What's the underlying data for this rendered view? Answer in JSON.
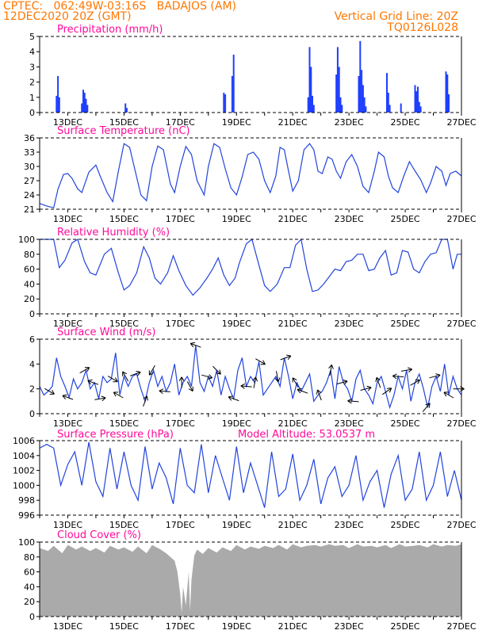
{
  "header": {
    "source_location": "CPTEC:   062:49W-03:16S   BADAJOS (AM)",
    "init_time": "12DEC2020 20Z (GMT)",
    "grid_line": "Vertical Grid Line: 20Z",
    "model_code": "TQ0126L028"
  },
  "x_ticks": [
    "13DEC",
    "15DEC",
    "17DEC",
    "19DEC",
    "21DEC",
    "23DEC",
    "25DEC",
    "27DEC"
  ],
  "colors": {
    "series": "#2244dd",
    "bar": "#1f3fff",
    "cloud": "#aaaaaa",
    "title": "#ff0a9a",
    "header": "#ff7700"
  },
  "chart_data": [
    {
      "type": "bar",
      "title": "Precipitation (mm/h)",
      "ylim": [
        0,
        5
      ],
      "yticks": [
        0,
        1,
        2,
        3,
        4,
        5
      ],
      "xlim": [
        0,
        15
      ],
      "values": [
        [
          0.6,
          1.1
        ],
        [
          0.65,
          2.4
        ],
        [
          0.7,
          1.0
        ],
        [
          1.5,
          0.6
        ],
        [
          1.55,
          1.5
        ],
        [
          1.6,
          1.3
        ],
        [
          1.65,
          0.9
        ],
        [
          1.7,
          0.5
        ],
        [
          3.05,
          0.6
        ],
        [
          3.1,
          0.3
        ],
        [
          6.55,
          1.3
        ],
        [
          6.6,
          1.2
        ],
        [
          6.85,
          2.4
        ],
        [
          6.9,
          3.8
        ],
        [
          9.55,
          1.0
        ],
        [
          9.6,
          4.3
        ],
        [
          9.65,
          3.0
        ],
        [
          9.7,
          1.1
        ],
        [
          9.75,
          0.5
        ],
        [
          10.55,
          2.5
        ],
        [
          10.6,
          4.3
        ],
        [
          10.65,
          3.0
        ],
        [
          10.7,
          1.0
        ],
        [
          10.75,
          0.5
        ],
        [
          11.35,
          2.4
        ],
        [
          11.4,
          4.7
        ],
        [
          11.45,
          2.8
        ],
        [
          11.5,
          1.8
        ],
        [
          11.55,
          1.0
        ],
        [
          11.6,
          0.4
        ],
        [
          12.35,
          2.6
        ],
        [
          12.4,
          1.3
        ],
        [
          12.45,
          0.5
        ],
        [
          12.85,
          0.6
        ],
        [
          13.35,
          1.8
        ],
        [
          13.4,
          1.4
        ],
        [
          13.45,
          1.7
        ],
        [
          13.5,
          0.7
        ],
        [
          13.55,
          0.4
        ],
        [
          14.45,
          2.7
        ],
        [
          14.5,
          2.5
        ],
        [
          14.55,
          1.2
        ]
      ]
    },
    {
      "type": "line",
      "title": "Surface Temperature (nC)",
      "ylim": [
        21,
        36
      ],
      "yticks": [
        21,
        24,
        27,
        30,
        33,
        36
      ],
      "xlim": [
        0,
        15
      ],
      "x": [
        0,
        0.3,
        0.5,
        0.65,
        0.85,
        1.0,
        1.15,
        1.35,
        1.5,
        1.75,
        2.0,
        2.15,
        2.4,
        2.6,
        2.8,
        3.0,
        3.2,
        3.4,
        3.6,
        3.8,
        4.0,
        4.2,
        4.4,
        4.65,
        4.8,
        5.0,
        5.2,
        5.4,
        5.6,
        5.85,
        6.0,
        6.2,
        6.4,
        6.6,
        6.8,
        7.0,
        7.2,
        7.4,
        7.6,
        7.8,
        8.0,
        8.2,
        8.4,
        8.55,
        8.7,
        8.85,
        9.0,
        9.2,
        9.4,
        9.6,
        9.75,
        9.9,
        10.05,
        10.25,
        10.4,
        10.55,
        10.7,
        10.9,
        11.1,
        11.3,
        11.5,
        11.7,
        11.9,
        12.05,
        12.25,
        12.4,
        12.55,
        12.75,
        12.95,
        13.15,
        13.3,
        13.55,
        13.75,
        13.9,
        14.1,
        14.3,
        14.45,
        14.6,
        14.8,
        15.0
      ],
      "y": [
        22.2,
        21.6,
        21.3,
        25.2,
        28.3,
        28.5,
        27.5,
        25.3,
        24.5,
        28.8,
        30.3,
        28.0,
        24.5,
        22.6,
        29.0,
        34.8,
        34.0,
        29.0,
        24.0,
        22.8,
        30.0,
        34.3,
        33.5,
        26.3,
        24.5,
        30.0,
        34.2,
        32.5,
        27.0,
        24.0,
        30.0,
        34.8,
        34.0,
        29.5,
        25.5,
        24.0,
        27.8,
        32.5,
        33.0,
        31.5,
        27.0,
        24.5,
        28.0,
        34.0,
        33.5,
        29.0,
        24.8,
        27.0,
        33.5,
        34.8,
        33.5,
        29.0,
        28.5,
        32.0,
        31.5,
        29.0,
        27.5,
        31.0,
        32.5,
        30.0,
        25.8,
        24.5,
        29.0,
        33.0,
        32.0,
        28.0,
        25.5,
        24.5,
        28.0,
        31.0,
        29.5,
        27.2,
        24.5,
        26.5,
        30.0,
        29.0,
        26.0,
        28.5,
        29.0,
        28.0
      ]
    },
    {
      "type": "line",
      "title": "Relative Humidity (%)",
      "ylim": [
        0,
        100
      ],
      "yticks": [
        0,
        20,
        40,
        60,
        80,
        100
      ],
      "xlim": [
        0,
        15
      ],
      "x": [
        0,
        0.3,
        0.5,
        0.7,
        0.9,
        1.15,
        1.35,
        1.6,
        1.8,
        2.0,
        2.3,
        2.55,
        2.8,
        3.0,
        3.2,
        3.45,
        3.7,
        3.9,
        4.1,
        4.3,
        4.55,
        4.75,
        4.95,
        5.2,
        5.45,
        5.7,
        5.95,
        6.15,
        6.35,
        6.55,
        6.75,
        6.95,
        7.1,
        7.35,
        7.55,
        7.75,
        8.0,
        8.2,
        8.45,
        8.7,
        8.9,
        9.1,
        9.3,
        9.5,
        9.7,
        9.9,
        10.1,
        10.3,
        10.5,
        10.7,
        10.9,
        11.1,
        11.3,
        11.5,
        11.7,
        11.9,
        12.1,
        12.3,
        12.5,
        12.7,
        12.9,
        13.1,
        13.3,
        13.5,
        13.7,
        13.9,
        14.1,
        14.3,
        14.5,
        14.7,
        14.85,
        15.0
      ],
      "y": [
        100,
        100,
        100,
        62,
        72,
        95,
        100,
        70,
        55,
        52,
        80,
        88,
        55,
        32,
        38,
        55,
        90,
        75,
        48,
        40,
        55,
        78,
        58,
        38,
        25,
        35,
        48,
        60,
        75,
        52,
        38,
        48,
        68,
        94,
        100,
        72,
        38,
        30,
        40,
        62,
        62,
        92,
        100,
        60,
        30,
        32,
        40,
        50,
        60,
        58,
        70,
        72,
        80,
        80,
        58,
        60,
        75,
        85,
        52,
        55,
        85,
        83,
        60,
        55,
        70,
        80,
        82,
        100,
        100,
        60,
        80,
        80
      ]
    },
    {
      "type": "line",
      "title": "Surface Wind (m/s)",
      "ylim": [
        0,
        6
      ],
      "yticks": [
        0,
        2,
        4,
        6
      ],
      "xlim": [
        0,
        15
      ],
      "x": [
        0,
        0.15,
        0.3,
        0.45,
        0.6,
        0.75,
        0.9,
        1.05,
        1.2,
        1.35,
        1.5,
        1.65,
        1.8,
        1.95,
        2.1,
        2.25,
        2.4,
        2.55,
        2.7,
        2.85,
        3.0,
        3.15,
        3.3,
        3.45,
        3.6,
        3.75,
        3.9,
        4.05,
        4.2,
        4.35,
        4.5,
        4.65,
        4.8,
        4.95,
        5.1,
        5.25,
        5.4,
        5.55,
        5.7,
        5.85,
        6.0,
        6.15,
        6.3,
        6.45,
        6.6,
        6.75,
        6.9,
        7.05,
        7.2,
        7.35,
        7.5,
        7.65,
        7.8,
        7.95,
        8.1,
        8.25,
        8.4,
        8.55,
        8.7,
        8.85,
        9.0,
        9.15,
        9.3,
        9.45,
        9.6,
        9.75,
        9.9,
        10.05,
        10.2,
        10.35,
        10.5,
        10.65,
        10.8,
        10.95,
        11.1,
        11.25,
        11.4,
        11.55,
        11.7,
        11.85,
        12.0,
        12.15,
        12.3,
        12.45,
        12.6,
        12.75,
        12.9,
        13.05,
        13.2,
        13.35,
        13.5,
        13.65,
        13.8,
        13.95,
        14.1,
        14.25,
        14.4,
        14.55,
        14.7,
        14.85,
        15.0
      ],
      "y": [
        2.2,
        1.5,
        1.8,
        2.2,
        4.5,
        3.0,
        2.2,
        1.3,
        2.8,
        2.0,
        2.5,
        3.5,
        2.0,
        2.5,
        1.2,
        3.0,
        2.5,
        2.8,
        4.9,
        1.5,
        3.0,
        2.2,
        3.0,
        3.2,
        2.0,
        1.0,
        2.5,
        3.5,
        2.2,
        3.0,
        1.8,
        2.5,
        4.0,
        1.5,
        2.5,
        3.0,
        2.2,
        5.5,
        2.5,
        1.8,
        3.0,
        2.2,
        3.5,
        1.5,
        3.0,
        2.0,
        1.2,
        3.5,
        4.5,
        2.2,
        3.0,
        2.5,
        4.2,
        1.5,
        2.0,
        2.5,
        3.0,
        2.2,
        4.5,
        3.0,
        1.2,
        2.5,
        1.8,
        2.5,
        3.2,
        1.0,
        1.5,
        1.8,
        2.5,
        3.5,
        1.2,
        3.8,
        2.5,
        2.0,
        1.0,
        2.8,
        3.5,
        2.0,
        1.5,
        0.8,
        2.5,
        3.0,
        1.8,
        0.5,
        1.5,
        3.0,
        2.0,
        3.5,
        1.0,
        2.5,
        3.2,
        2.0,
        0.5,
        2.2,
        3.0,
        1.8,
        4.0,
        1.5,
        3.0,
        2.0,
        1.5
      ]
    },
    {
      "type": "line",
      "title": "Surface Pressure (hPa)",
      "annotation": "Model Altitude: 53.0537 m",
      "ylim": [
        996,
        1006
      ],
      "yticks": [
        996,
        998,
        1000,
        1002,
        1004,
        1006
      ],
      "xlim": [
        0,
        15
      ],
      "x": [
        0,
        0.25,
        0.5,
        0.75,
        1.0,
        1.25,
        1.5,
        1.75,
        2.0,
        2.25,
        2.5,
        2.75,
        3.0,
        3.25,
        3.5,
        3.75,
        4.0,
        4.25,
        4.5,
        4.75,
        5.0,
        5.25,
        5.5,
        5.75,
        6.0,
        6.25,
        6.5,
        6.75,
        7.0,
        7.25,
        7.5,
        7.75,
        8.0,
        8.25,
        8.5,
        8.75,
        9.0,
        9.25,
        9.5,
        9.75,
        10.0,
        10.25,
        10.5,
        10.75,
        11.0,
        11.25,
        11.5,
        11.75,
        12.0,
        12.25,
        12.5,
        12.75,
        13.0,
        13.25,
        13.5,
        13.75,
        14.0,
        14.25,
        14.5,
        14.75,
        15.0
      ],
      "y": [
        1005.0,
        1005.5,
        1005.0,
        1000.0,
        1002.8,
        1004.5,
        1000.0,
        1005.8,
        1000.5,
        998.5,
        1005.0,
        999.5,
        1004.5,
        1000.0,
        998.0,
        1005.2,
        999.5,
        1003.0,
        1001.0,
        997.5,
        1005.0,
        1000.0,
        999.0,
        1005.5,
        999.0,
        1004.0,
        1001.0,
        998.0,
        1005.2,
        999.0,
        1003.0,
        1000.0,
        997.0,
        1004.5,
        998.5,
        999.5,
        1004.2,
        998.0,
        1000.0,
        1003.5,
        997.5,
        1001.0,
        1002.5,
        998.5,
        1000.0,
        1004.0,
        998.0,
        1000.5,
        1002.0,
        997.0,
        1001.5,
        1004.0,
        998.0,
        999.5,
        1004.5,
        998.0,
        1000.0,
        1004.5,
        998.5,
        1002.0,
        998.0
      ]
    },
    {
      "type": "area",
      "title": "Cloud Cover (%)",
      "ylim": [
        0,
        100
      ],
      "yticks": [
        0,
        20,
        40,
        60,
        80,
        100
      ],
      "xlim": [
        0,
        15
      ],
      "x": [
        0,
        0.3,
        0.5,
        0.8,
        1.0,
        1.3,
        1.5,
        1.8,
        2.0,
        2.3,
        2.5,
        2.8,
        3.0,
        3.3,
        3.5,
        3.8,
        4.0,
        4.3,
        4.5,
        4.8,
        4.9,
        5.0,
        5.05,
        5.1,
        5.2,
        5.3,
        5.35,
        5.4,
        5.5,
        5.6,
        5.8,
        6.0,
        6.3,
        6.5,
        6.8,
        7.0,
        7.3,
        7.5,
        7.8,
        8.0,
        8.3,
        8.5,
        8.8,
        9.0,
        9.3,
        9.5,
        9.8,
        10.0,
        10.3,
        10.5,
        10.8,
        11.0,
        11.3,
        11.5,
        11.8,
        12.0,
        12.3,
        12.5,
        12.8,
        13.0,
        13.3,
        13.5,
        13.8,
        14.0,
        14.3,
        14.5,
        14.8,
        15.0
      ],
      "y": [
        92,
        88,
        95,
        85,
        96,
        90,
        94,
        88,
        92,
        86,
        95,
        90,
        93,
        87,
        94,
        85,
        96,
        90,
        85,
        75,
        60,
        30,
        5,
        40,
        15,
        60,
        8,
        50,
        82,
        90,
        84,
        92,
        86,
        93,
        88,
        96,
        90,
        94,
        91,
        95,
        92,
        96,
        90,
        97,
        93,
        95,
        96,
        94,
        97,
        95,
        96,
        92,
        97,
        94,
        95,
        93,
        96,
        92,
        97,
        94,
        95,
        96,
        93,
        97,
        94,
        96,
        95,
        97
      ]
    }
  ],
  "wind_arrows": [
    [
      0.35,
      30
    ],
    [
      1.0,
      200
    ],
    [
      1.6,
      -30
    ],
    [
      1.9,
      -160
    ],
    [
      2.15,
      -10
    ],
    [
      2.6,
      30
    ],
    [
      2.8,
      -150
    ],
    [
      3.05,
      -120
    ],
    [
      3.4,
      -20
    ],
    [
      3.75,
      -70
    ],
    [
      4.0,
      120
    ],
    [
      4.45,
      -175
    ],
    [
      5.05,
      -90
    ],
    [
      5.35,
      60
    ],
    [
      5.55,
      -160
    ],
    [
      5.95,
      15
    ],
    [
      6.3,
      45
    ],
    [
      6.9,
      -160
    ],
    [
      7.35,
      -175
    ],
    [
      7.65,
      -80
    ],
    [
      7.85,
      30
    ],
    [
      8.45,
      80
    ],
    [
      8.75,
      -20
    ],
    [
      9.1,
      -120
    ],
    [
      9.35,
      -160
    ],
    [
      9.95,
      -110
    ],
    [
      10.35,
      -80
    ],
    [
      10.75,
      -15
    ],
    [
      11.15,
      -175
    ],
    [
      11.6,
      -15
    ],
    [
      12.05,
      -110
    ],
    [
      12.35,
      -35
    ],
    [
      12.75,
      -175
    ],
    [
      13.05,
      -10
    ],
    [
      13.35,
      -30
    ],
    [
      13.75,
      -50
    ],
    [
      14.05,
      -15
    ],
    [
      14.55,
      -150
    ],
    [
      14.9,
      0
    ]
  ]
}
